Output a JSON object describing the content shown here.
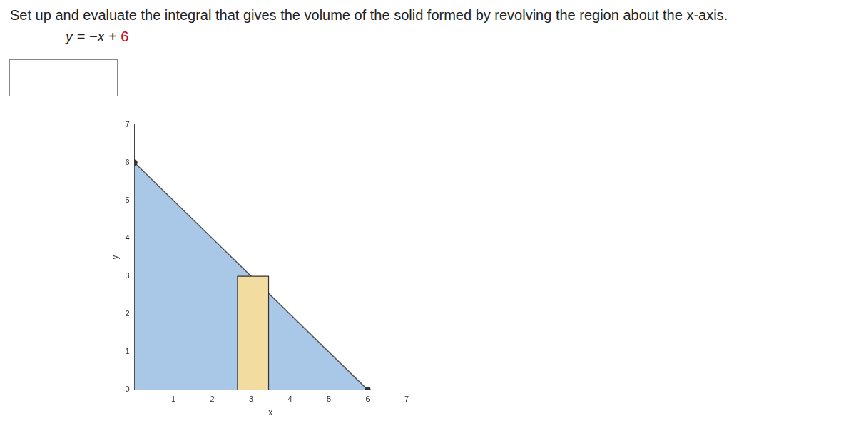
{
  "header": {
    "prompt": "Set up and evaluate the integral that gives the volume of the solid formed by revolving the region about the x-axis.",
    "equation": "y = −x + 6",
    "equation_highlight": "6"
  },
  "chart_data": {
    "type": "area",
    "x_label": "x",
    "y_label": "y",
    "xlim": [
      0,
      7
    ],
    "xticks": [
      1,
      2,
      3,
      4,
      5,
      6,
      7
    ],
    "ylim": [
      0,
      7
    ],
    "yticks": [
      0,
      1,
      2,
      3,
      4,
      5,
      6,
      7
    ],
    "grid": false,
    "series": [
      {
        "type": "area",
        "color": "#a9c7e6",
        "marker": "circle",
        "x": [
          0,
          6
        ],
        "values": [
          6,
          0
        ]
      },
      {
        "type": "area",
        "color": "#f2dca0",
        "marker": "none",
        "x": [
          2.65,
          2.65,
          3.45,
          3.45
        ],
        "values": [
          0,
          3,
          3,
          0
        ]
      }
    ]
  }
}
